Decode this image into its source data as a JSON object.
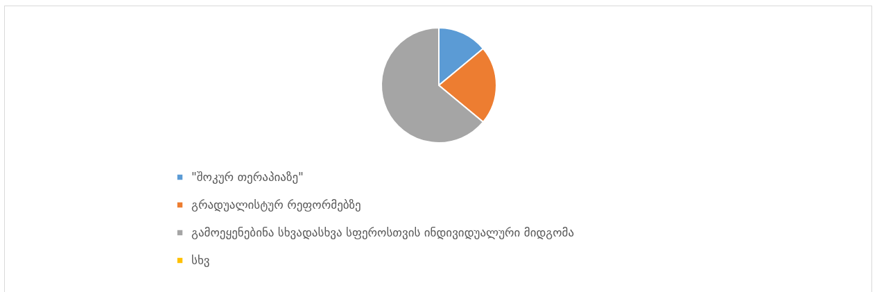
{
  "chart_data": {
    "type": "pie",
    "categories": [
      "\"შოკურ თერაპიაზე\"",
      "გრადუალისტურ რეფორმებზე",
      "გამოეყენებინა სხვადასხვა სფეროსთვის ინდივიდუალური მიდგომა",
      "სხვ"
    ],
    "values": [
      14,
      22,
      64,
      0
    ],
    "colors": [
      "#5b9bd5",
      "#ed7d31",
      "#a5a5a5",
      "#ffc000"
    ],
    "legend": "bottom"
  }
}
